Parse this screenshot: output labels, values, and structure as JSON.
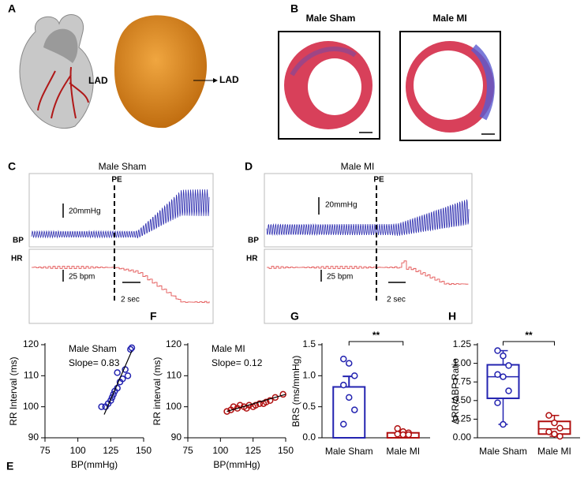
{
  "figure": {
    "A": {
      "label": "A",
      "lad_illustration": "LAD",
      "lad_photo": "LAD"
    },
    "B": {
      "label": "B",
      "sham": "Male Sham",
      "mi": "Male MI"
    },
    "C": {
      "label": "C",
      "title": "Male Sham",
      "pe": "PE",
      "bp_scale": "20mmHg",
      "bp": "BP",
      "hr": "HR",
      "hr_scale": "25 bpm",
      "time_scale": "2 sec"
    },
    "D": {
      "label": "D",
      "title": "Male MI",
      "pe": "PE",
      "bp_scale": "20mmHg",
      "bp": "BP",
      "hr": "HR",
      "hr_scale": "25 bpm",
      "time_scale": "2 sec"
    }
  },
  "chart_data": [
    {
      "type": "scatter",
      "panel": "E",
      "annotations": [
        "Male Sham",
        "Slope= 0.83"
      ],
      "x_label": "BP(mmHg)",
      "y_label": "RR Interval (ms)",
      "x": [
        118,
        121,
        123,
        125,
        126,
        127,
        128,
        130,
        132,
        134,
        138,
        130,
        136,
        140,
        141
      ],
      "y": [
        100,
        100,
        101,
        102,
        103,
        104,
        105,
        106,
        108,
        109,
        110,
        111,
        112,
        118.5,
        119
      ],
      "fit_x": [
        120,
        141
      ],
      "fit_y": [
        97.5,
        118
      ],
      "color": "#2323b0",
      "xlim": [
        75,
        150
      ],
      "xticks": [
        75,
        100,
        125,
        150
      ],
      "ylim": [
        90,
        120
      ],
      "yticks": [
        90,
        100,
        110,
        120
      ]
    },
    {
      "type": "scatter",
      "panel": "F",
      "annotations": [
        "Male MI",
        "Slope= 0.12"
      ],
      "x_label": "BP(mmHg)",
      "y_label": "RR interval (ms)",
      "x": [
        105,
        108,
        110,
        113,
        115,
        118,
        120,
        122,
        125,
        127,
        130,
        133,
        135,
        138,
        142,
        148
      ],
      "y": [
        98.5,
        99,
        100,
        99.5,
        100.5,
        100,
        99.5,
        100.5,
        100,
        100.5,
        101,
        101,
        101.5,
        102,
        103,
        104
      ],
      "fit_x": [
        105,
        150
      ],
      "fit_y": [
        98.5,
        104
      ],
      "color": "#b01010",
      "xlim": [
        75,
        150
      ],
      "xticks": [
        75,
        100,
        125,
        150
      ],
      "ylim": [
        90,
        120
      ],
      "yticks": [
        90,
        100,
        110,
        120
      ]
    },
    {
      "type": "bar",
      "panel": "G",
      "y_label": "BRS (ms/mmHg)",
      "categories": [
        "Male Sham",
        "Male MI"
      ],
      "values": [
        0.82,
        0.08
      ],
      "errors": [
        0.17,
        0.02
      ],
      "colors": [
        "#2323b0",
        "#b01010"
      ],
      "points": [
        [
          1.27,
          1.2,
          1.0,
          0.85,
          0.65,
          0.45,
          0.22
        ],
        [
          0.15,
          0.1,
          0.08,
          0.06,
          0.05,
          0.05
        ]
      ],
      "significance": "**",
      "ylim": [
        0,
        1.5
      ],
      "yticks": [
        {
          "value": 0,
          "label": "0.0"
        },
        {
          "value": 0.5,
          "label": "0.5"
        },
        {
          "value": 1,
          "label": "1.0"
        },
        {
          "value": 1.5,
          "label": "1.5"
        }
      ]
    },
    {
      "type": "box",
      "panel": "H",
      "y_label": "ΔRR/ΔBP Ratio",
      "categories": [
        "Male Sham",
        "Male MI"
      ],
      "boxes": [
        {
          "min": 0.18,
          "q1": 0.53,
          "median": 0.82,
          "q3": 0.98,
          "max": 1.17
        },
        {
          "min": 0.02,
          "q1": 0.05,
          "median": 0.12,
          "q3": 0.22,
          "max": 0.3
        }
      ],
      "colors": [
        "#2323b0",
        "#b01010"
      ],
      "points": [
        [
          1.17,
          1.1,
          0.97,
          0.85,
          0.82,
          0.63,
          0.47,
          0.18
        ],
        [
          0.3,
          0.2,
          0.13,
          0.08,
          0.05,
          0.02
        ]
      ],
      "significance": "**",
      "ylim": [
        0,
        1.25
      ],
      "yticks": [
        {
          "value": 0,
          "label": "0.00"
        },
        {
          "value": 0.25,
          "label": "0.25"
        },
        {
          "value": 0.5,
          "label": "0.50"
        },
        {
          "value": 0.75,
          "label": "0.75"
        },
        {
          "value": 1,
          "label": "1.00"
        },
        {
          "value": 1.25,
          "label": "1.25"
        }
      ]
    }
  ]
}
